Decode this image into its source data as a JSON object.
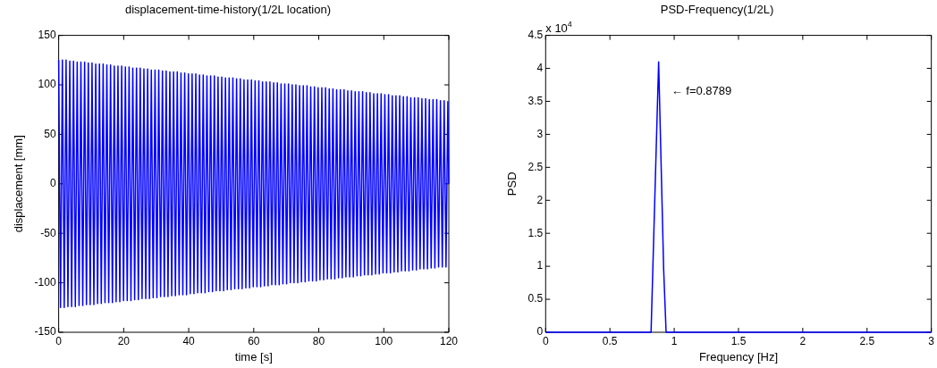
{
  "chart_data": [
    {
      "type": "line",
      "title": "displacement-time-history(1/2L location)",
      "xlabel": "time [s]",
      "ylabel": "displacement [mm]",
      "xlim": [
        0,
        120
      ],
      "xticks": [
        0,
        20,
        40,
        60,
        80,
        100,
        120
      ],
      "ylim": [
        -150,
        150
      ],
      "yticks": [
        -150,
        -100,
        -50,
        0,
        50,
        100,
        150
      ],
      "grid": false,
      "legend": false,
      "marker": "none",
      "line_style": "solid",
      "series": [
        {
          "color": "#0000ff",
          "x": [
            0,
            0.57,
            1.14,
            1.71,
            2.28,
            2.85,
            3.42,
            3.99,
            4.56,
            5.13,
            5.7,
            6.27,
            6.84,
            7.41,
            7.98,
            8.55,
            9.12,
            9.69,
            10.26,
            10.83,
            11.4,
            11.97,
            12.54,
            13.11,
            13.68,
            14.25,
            14.82,
            15.39,
            15.96,
            16.53,
            17.1,
            17.67,
            18.24,
            18.81,
            19.38,
            19.95,
            20.52,
            21.09,
            21.66,
            22.23,
            22.8,
            23.37,
            23.94,
            24.51,
            25.08,
            25.65,
            26.22,
            26.79,
            27.36,
            27.93,
            28.5,
            29.07,
            29.64,
            30.21,
            30.78,
            31.35,
            31.92,
            32.49,
            33.06,
            33.63,
            34.2,
            34.77,
            35.34,
            35.91,
            36.48,
            37.05,
            37.62,
            38.19,
            38.76,
            39.33,
            39.9,
            40.47,
            41.04,
            41.61,
            42.18,
            42.75,
            43.32,
            43.89,
            44.46,
            45.03,
            45.6,
            46.17,
            46.74,
            47.31,
            47.88,
            48.45,
            49.02,
            49.59,
            50.16,
            50.73,
            51.3,
            51.87,
            52.44,
            53.01,
            53.58,
            54.15,
            54.72,
            55.29,
            55.86,
            56.43,
            57,
            57.57,
            58.14,
            58.71,
            59.28,
            59.85,
            60.42,
            60.99,
            61.56,
            62.13,
            62.7,
            63.27,
            63.84,
            64.41,
            64.98,
            65.55,
            66.12,
            66.69,
            67.26,
            67.83,
            68.4,
            68.97,
            69.54,
            70.11,
            70.68,
            71.25,
            71.82,
            72.39,
            72.96,
            73.53,
            74.1,
            74.67,
            75.24,
            75.81,
            76.38,
            76.95,
            77.52,
            78.09,
            78.66,
            79.23,
            79.8,
            80.37,
            80.94,
            81.51,
            82.08,
            82.65,
            83.22,
            83.79,
            84.36,
            84.93,
            85.5,
            86.07,
            86.64,
            87.21,
            87.78,
            88.35,
            88.92,
            89.49,
            90.06,
            90.63,
            91.2,
            91.77,
            92.34,
            92.91,
            93.48,
            94.05,
            94.62,
            95.19,
            95.76,
            96.33,
            96.9,
            97.47,
            98.04,
            98.61,
            99.18,
            99.75,
            100.32,
            100.89,
            101.46,
            102.03,
            102.6,
            103.17,
            103.74,
            104.31,
            104.88,
            105.45,
            106.02,
            106.59,
            107.16,
            107.73,
            108.3,
            108.87,
            109.44,
            110.01,
            110.58,
            111.15,
            111.72,
            112.29,
            112.86,
            113.43,
            114,
            114.57,
            115.14,
            115.71,
            116.28,
            116.85,
            117.42,
            117.99,
            118.56,
            119.13,
            119.7,
            120
          ],
          "values": [
            125,
            -125,
            125,
            -125,
            125,
            -124,
            124,
            -124,
            124,
            -124,
            123,
            -123,
            123,
            -123,
            123,
            -122,
            122,
            -122,
            122,
            -122,
            121,
            -121,
            121,
            -121,
            121,
            -120,
            120,
            -120,
            120,
            -120,
            119,
            -119,
            119,
            -119,
            119,
            -118,
            118,
            -118,
            118,
            -118,
            117,
            -117,
            117,
            -117,
            117,
            -116,
            116,
            -116,
            116,
            -116,
            115,
            -115,
            115,
            -115,
            115,
            -114,
            114,
            -114,
            114,
            -114,
            113,
            -113,
            113,
            -113,
            113,
            -112,
            112,
            -112,
            112,
            -112,
            111,
            -111,
            111,
            -111,
            111,
            -110,
            110,
            -110,
            110,
            -110,
            109,
            -109,
            109,
            -109,
            109,
            -108,
            108,
            -108,
            108,
            -108,
            107,
            -107,
            107,
            -107,
            107,
            -106,
            106,
            -106,
            106,
            -106,
            105,
            -105,
            105,
            -105,
            105,
            -104,
            104,
            -104,
            104,
            -104,
            103,
            -103,
            103,
            -103,
            103,
            -102,
            102,
            -102,
            102,
            -102,
            101,
            -101,
            101,
            -101,
            101,
            -100,
            100,
            -100,
            100,
            -100,
            99,
            -99,
            99,
            -99,
            99,
            -98,
            98,
            -98,
            98,
            -98,
            97,
            -97,
            97,
            -97,
            97,
            -96,
            96,
            -96,
            96,
            -96,
            95,
            -95,
            95,
            -95,
            95,
            -94,
            94,
            -94,
            94,
            -94,
            93,
            -93,
            93,
            -93,
            93,
            -92,
            92,
            -92,
            92,
            -92,
            91,
            -91,
            91,
            -91,
            91,
            -90,
            90,
            -90,
            90,
            -90,
            89,
            -89,
            89,
            -89,
            89,
            -88,
            88,
            -88,
            88,
            -88,
            87,
            -87,
            87,
            -87,
            87,
            -86,
            86,
            -86,
            86,
            -86,
            85,
            -85,
            85,
            -85,
            85,
            -84,
            84,
            -84,
            84,
            -84,
            83,
            0
          ]
        }
      ]
    },
    {
      "type": "line",
      "title": "PSD-Frequency(1/2L)",
      "xlabel": "Frequency [Hz]",
      "ylabel": "PSD",
      "xlim": [
        0,
        3
      ],
      "xticks": [
        0,
        0.5,
        1,
        1.5,
        2,
        2.5,
        3
      ],
      "ylim": [
        0,
        4.5
      ],
      "yticks": [
        0,
        0.5,
        1,
        1.5,
        2,
        2.5,
        3,
        3.5,
        4,
        4.5
      ],
      "grid": false,
      "legend": false,
      "marker": "none",
      "line_style": "solid",
      "annotations": [
        "x 10$^{4}$",
        {
          "text": "← f=0.8789",
          "x": 0.8789,
          "y": 3.65
        }
      ],
      "series": [
        {
          "color": "#0000ff",
          "x": [
            0,
            0.82,
            0.8789,
            0.918,
            0.937,
            3
          ],
          "values": [
            0,
            0,
            4.1,
            0.95,
            0,
            0
          ]
        }
      ]
    }
  ]
}
